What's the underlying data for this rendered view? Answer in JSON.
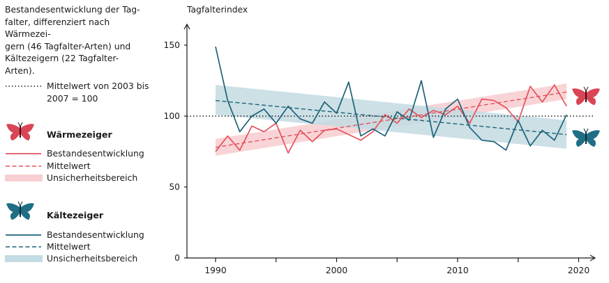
{
  "title": "Bestandesentwicklung der Tagfalter, differenziert nach Wärmezeigern (46 Tagfalter-Arten) und Kältezeigern (22 Tagfalter-Arten).",
  "title_lines": [
    "Bestandesentwicklung der Tag-",
    "falter, differenziert nach Wärmezei-",
    "gern (46 Tagfalter-Arten) und",
    "Kältezeigern (22 Tagfalter-Arten)."
  ],
  "reference": {
    "lines": [
      "Mittelwert von 2003 bis",
      "2007 = 100"
    ],
    "value": 100
  },
  "legend": {
    "warm": {
      "heading": "Wärmezeiger",
      "icon": "red-butterfly-icon",
      "items": [
        "Bestandesentwicklung",
        "Mittelwert",
        "Unsicherheitsbereich"
      ]
    },
    "cold": {
      "heading": "Kältezeiger",
      "icon": "teal-butterfly-icon",
      "items": [
        "Bestandesentwicklung",
        "Mittelwert",
        "Unsicherheitsbereich"
      ]
    }
  },
  "colors": {
    "warm_line": "#e3525c",
    "warm_band": "#f8cfd3",
    "warm_icon": "#d94555",
    "cold_line": "#1c6377",
    "cold_band": "#c3dbe2",
    "cold_icon": "#1f6e86",
    "axis": "#1a1a1a"
  },
  "chart_data": {
    "type": "line",
    "ylabel": "Tagfalterindex",
    "xlabel": "",
    "xlim": [
      1989,
      2022
    ],
    "ylim": [
      0,
      150
    ],
    "xticks": [
      1990,
      2000,
      2010,
      2020
    ],
    "yticks": [
      0,
      50,
      100,
      150
    ],
    "x": [
      1990,
      1991,
      1992,
      1993,
      1994,
      1995,
      1996,
      1997,
      1998,
      1999,
      2000,
      2001,
      2002,
      2003,
      2004,
      2005,
      2006,
      2007,
      2008,
      2009,
      2010,
      2011,
      2012,
      2013,
      2014,
      2015,
      2016,
      2017,
      2018,
      2019
    ],
    "series": [
      {
        "name": "Wärmezeiger",
        "values": [
          75,
          86,
          76,
          93,
          89,
          95,
          74,
          90,
          82,
          90,
          91,
          87,
          83,
          89,
          101,
          95,
          105,
          99,
          104,
          101,
          107,
          95,
          112,
          111,
          106,
          96,
          121,
          110,
          122,
          107
        ],
        "trend": [
          78,
          117
        ],
        "band": [
          [
            72,
            84
          ],
          [
            112,
            123
          ]
        ]
      },
      {
        "name": "Kältezeiger",
        "values": [
          149,
          111,
          89,
          100,
          105,
          95,
          107,
          98,
          95,
          110,
          102,
          124,
          86,
          91,
          86,
          103,
          97,
          125,
          85,
          105,
          112,
          92,
          83,
          82,
          76,
          97,
          79,
          90,
          83,
          101
        ],
        "trend": [
          111,
          87
        ],
        "band": [
          [
            101,
            122
          ],
          [
            77,
            97
          ]
        ]
      }
    ]
  }
}
